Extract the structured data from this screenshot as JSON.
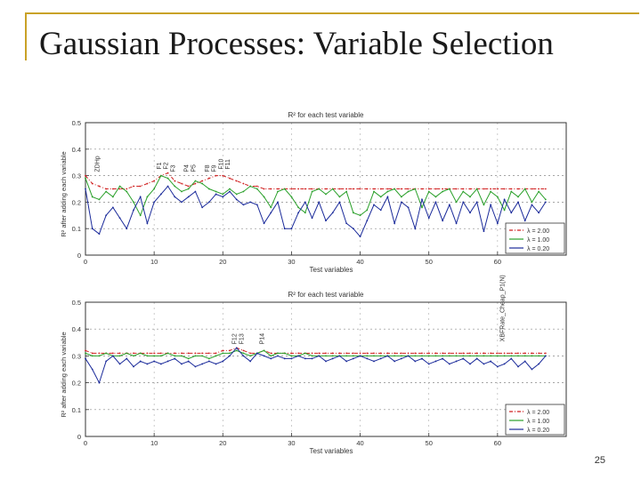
{
  "slide": {
    "title": "Gaussian Processes: Variable Selection",
    "page_number": "25",
    "accent_color": "#c9a227"
  },
  "chart_data": [
    {
      "type": "line",
      "title": "R² for each test variable",
      "xlabel": "Test variables",
      "ylabel": "R² after adding each variable",
      "xlim": [
        0,
        70
      ],
      "ylim": [
        0,
        0.5
      ],
      "x_ticks": [
        0,
        10,
        20,
        30,
        40,
        50,
        60
      ],
      "y_ticks": [
        0,
        0.1,
        0.2,
        0.3,
        0.4,
        0.5
      ],
      "grid": "dashed horizontal",
      "legend_position": "bottom-right",
      "annotations": [
        {
          "text": "ZDHp",
          "x": 2,
          "y": 0.3
        },
        {
          "text": "F1",
          "x": 11,
          "y": 0.31
        },
        {
          "text": "F2",
          "x": 12,
          "y": 0.31
        },
        {
          "text": "F3",
          "x": 13,
          "y": 0.3
        },
        {
          "text": "P4",
          "x": 15,
          "y": 0.3
        },
        {
          "text": "P5",
          "x": 16,
          "y": 0.3
        },
        {
          "text": "F8",
          "x": 18,
          "y": 0.3
        },
        {
          "text": "F9",
          "x": 19,
          "y": 0.3
        },
        {
          "text": "F10",
          "x": 20,
          "y": 0.31
        },
        {
          "text": "F11",
          "x": 21,
          "y": 0.31
        }
      ],
      "series": [
        {
          "name": "λ = 2.00",
          "color": "#d02020",
          "style": "dash-dot",
          "values": [
            0.3,
            0.27,
            0.26,
            0.25,
            0.25,
            0.25,
            0.25,
            0.26,
            0.26,
            0.27,
            0.28,
            0.3,
            0.31,
            0.28,
            0.27,
            0.26,
            0.27,
            0.28,
            0.29,
            0.3,
            0.3,
            0.29,
            0.28,
            0.27,
            0.26,
            0.26,
            0.25,
            0.25,
            0.25,
            0.25,
            0.25,
            0.25,
            0.25,
            0.25,
            0.25,
            0.25,
            0.25,
            0.25,
            0.25,
            0.25,
            0.25,
            0.25,
            0.25,
            0.25,
            0.25,
            0.25,
            0.25,
            0.25,
            0.25,
            0.25,
            0.25,
            0.25,
            0.25,
            0.25,
            0.25,
            0.25,
            0.25,
            0.25,
            0.25,
            0.25,
            0.25,
            0.25,
            0.25,
            0.25,
            0.25,
            0.25,
            0.25,
            0.25
          ]
        },
        {
          "name": "λ = 1.00",
          "color": "#2aa02a",
          "style": "solid",
          "values": [
            0.29,
            0.22,
            0.21,
            0.24,
            0.22,
            0.26,
            0.24,
            0.2,
            0.15,
            0.22,
            0.25,
            0.3,
            0.29,
            0.26,
            0.24,
            0.25,
            0.28,
            0.27,
            0.25,
            0.24,
            0.23,
            0.25,
            0.23,
            0.24,
            0.26,
            0.25,
            0.22,
            0.18,
            0.24,
            0.25,
            0.22,
            0.18,
            0.16,
            0.24,
            0.25,
            0.23,
            0.25,
            0.22,
            0.24,
            0.16,
            0.15,
            0.17,
            0.24,
            0.22,
            0.24,
            0.25,
            0.22,
            0.24,
            0.25,
            0.18,
            0.24,
            0.22,
            0.24,
            0.25,
            0.2,
            0.24,
            0.22,
            0.25,
            0.19,
            0.24,
            0.22,
            0.17,
            0.24,
            0.22,
            0.25,
            0.2,
            0.24,
            0.21
          ]
        },
        {
          "name": "λ = 0.20",
          "color": "#1a2a9a",
          "style": "solid",
          "values": [
            0.25,
            0.1,
            0.08,
            0.15,
            0.18,
            0.14,
            0.1,
            0.17,
            0.22,
            0.12,
            0.2,
            0.23,
            0.26,
            0.22,
            0.2,
            0.22,
            0.24,
            0.18,
            0.2,
            0.23,
            0.22,
            0.24,
            0.21,
            0.19,
            0.2,
            0.19,
            0.12,
            0.16,
            0.2,
            0.1,
            0.1,
            0.16,
            0.2,
            0.14,
            0.2,
            0.13,
            0.16,
            0.2,
            0.12,
            0.1,
            0.07,
            0.13,
            0.19,
            0.17,
            0.22,
            0.12,
            0.2,
            0.18,
            0.1,
            0.21,
            0.14,
            0.2,
            0.13,
            0.19,
            0.12,
            0.2,
            0.16,
            0.2,
            0.09,
            0.19,
            0.12,
            0.21,
            0.16,
            0.2,
            0.13,
            0.19,
            0.16,
            0.2
          ]
        }
      ]
    },
    {
      "type": "line",
      "title": "R² for each test variable",
      "xlabel": "Test variables",
      "ylabel": "R² after adding each variable",
      "xlim": [
        0,
        70
      ],
      "ylim": [
        0,
        0.5
      ],
      "x_ticks": [
        0,
        10,
        20,
        30,
        40,
        50,
        60
      ],
      "y_ticks": [
        0,
        0.1,
        0.2,
        0.3,
        0.4,
        0.5
      ],
      "grid": "dashed horizontal",
      "legend_position": "bottom-right",
      "annotations": [
        {
          "text": "F12",
          "x": 22,
          "y": 0.33
        },
        {
          "text": "F13",
          "x": 23,
          "y": 0.33
        },
        {
          "text": "P14",
          "x": 26,
          "y": 0.33
        },
        {
          "text": "XBFRate_Cheap_P1(N)",
          "x": 61,
          "y": 0.34
        }
      ],
      "series": [
        {
          "name": "λ = 2.00",
          "color": "#d02020",
          "style": "dash-dot",
          "values": [
            0.32,
            0.31,
            0.31,
            0.31,
            0.31,
            0.31,
            0.31,
            0.31,
            0.31,
            0.31,
            0.31,
            0.31,
            0.31,
            0.31,
            0.31,
            0.31,
            0.31,
            0.31,
            0.31,
            0.31,
            0.32,
            0.32,
            0.33,
            0.32,
            0.31,
            0.31,
            0.32,
            0.31,
            0.31,
            0.31,
            0.31,
            0.31,
            0.31,
            0.31,
            0.31,
            0.31,
            0.31,
            0.31,
            0.31,
            0.31,
            0.31,
            0.31,
            0.31,
            0.31,
            0.31,
            0.31,
            0.31,
            0.31,
            0.31,
            0.31,
            0.31,
            0.31,
            0.31,
            0.31,
            0.31,
            0.31,
            0.31,
            0.31,
            0.31,
            0.31,
            0.31,
            0.31,
            0.31,
            0.31,
            0.31,
            0.31,
            0.31,
            0.31
          ]
        },
        {
          "name": "λ = 1.00",
          "color": "#2aa02a",
          "style": "solid",
          "values": [
            0.31,
            0.3,
            0.3,
            0.31,
            0.3,
            0.3,
            0.31,
            0.3,
            0.31,
            0.3,
            0.3,
            0.3,
            0.31,
            0.3,
            0.3,
            0.29,
            0.3,
            0.3,
            0.29,
            0.3,
            0.31,
            0.31,
            0.32,
            0.31,
            0.3,
            0.31,
            0.32,
            0.3,
            0.31,
            0.31,
            0.3,
            0.3,
            0.31,
            0.3,
            0.3,
            0.3,
            0.3,
            0.3,
            0.3,
            0.3,
            0.3,
            0.3,
            0.3,
            0.3,
            0.3,
            0.3,
            0.3,
            0.3,
            0.3,
            0.3,
            0.3,
            0.3,
            0.3,
            0.3,
            0.3,
            0.3,
            0.3,
            0.3,
            0.3,
            0.3,
            0.3,
            0.3,
            0.3,
            0.3,
            0.3,
            0.3,
            0.3,
            0.3
          ]
        },
        {
          "name": "λ = 0.20",
          "color": "#1a2a9a",
          "style": "solid",
          "values": [
            0.29,
            0.25,
            0.2,
            0.28,
            0.3,
            0.27,
            0.29,
            0.26,
            0.28,
            0.27,
            0.28,
            0.27,
            0.28,
            0.29,
            0.27,
            0.28,
            0.26,
            0.27,
            0.28,
            0.27,
            0.28,
            0.3,
            0.33,
            0.3,
            0.28,
            0.31,
            0.3,
            0.29,
            0.3,
            0.29,
            0.29,
            0.3,
            0.29,
            0.29,
            0.3,
            0.28,
            0.29,
            0.3,
            0.28,
            0.29,
            0.3,
            0.29,
            0.28,
            0.29,
            0.3,
            0.28,
            0.29,
            0.3,
            0.28,
            0.29,
            0.27,
            0.28,
            0.29,
            0.27,
            0.28,
            0.29,
            0.27,
            0.29,
            0.27,
            0.28,
            0.26,
            0.27,
            0.29,
            0.26,
            0.28,
            0.25,
            0.27,
            0.3
          ]
        }
      ]
    }
  ]
}
